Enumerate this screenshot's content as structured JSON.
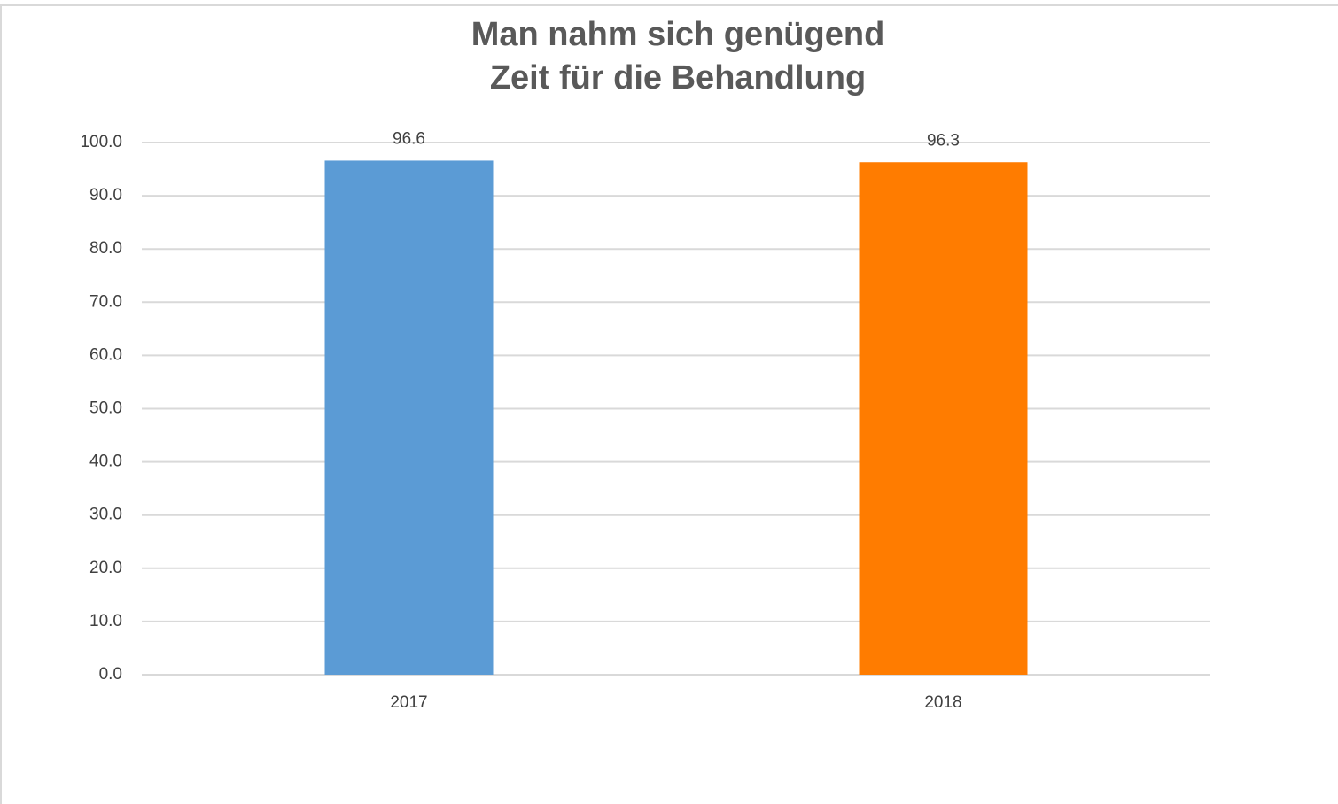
{
  "chart_data": {
    "type": "bar",
    "title": [
      "Man nahm sich genügend",
      "Zeit für die Behandlung"
    ],
    "categories": [
      "2017",
      "2018"
    ],
    "values": [
      96.6,
      96.3
    ],
    "colors": [
      "#5b9bd5",
      "#ff7c00"
    ],
    "ylim": [
      0,
      100
    ],
    "yticks": [
      {
        "value": 0,
        "label": "0.0"
      },
      {
        "value": 10,
        "label": "10.0"
      },
      {
        "value": 20,
        "label": "20.0"
      },
      {
        "value": 30,
        "label": "30.0"
      },
      {
        "value": 40,
        "label": "40.0"
      },
      {
        "value": 50,
        "label": "50.0"
      },
      {
        "value": 60,
        "label": "60.0"
      },
      {
        "value": 70,
        "label": "70.0"
      },
      {
        "value": 80,
        "label": "80.0"
      },
      {
        "value": 90,
        "label": "90.0"
      },
      {
        "value": 100,
        "label": "100.0"
      }
    ],
    "grid": true
  }
}
